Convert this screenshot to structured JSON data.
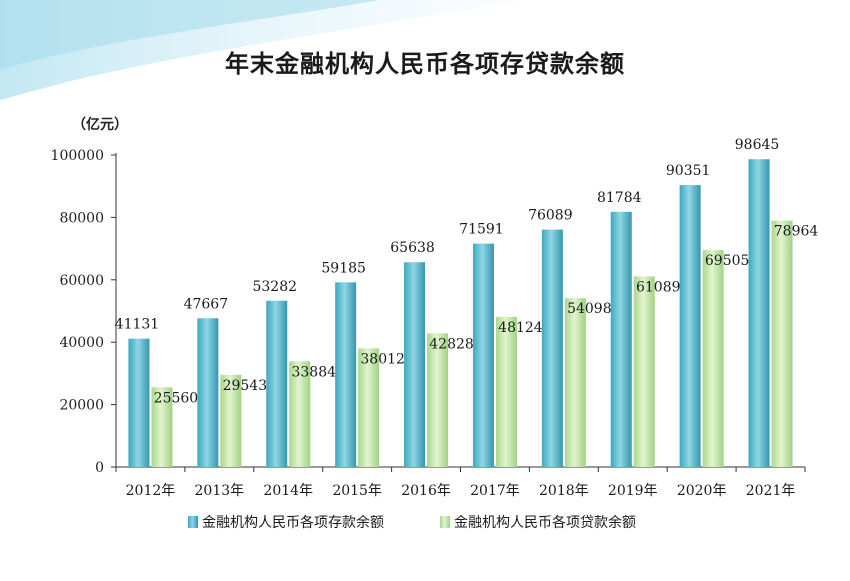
{
  "chart_data": {
    "type": "bar",
    "title": "年末金融机构人民币各项存贷款余额",
    "unit_label": "（亿元）",
    "categories": [
      "2012年",
      "2013年",
      "2014年",
      "2015年",
      "2016年",
      "2017年",
      "2018年",
      "2019年",
      "2020年",
      "2021年"
    ],
    "series": [
      {
        "name": "金融机构人民币各项存款余额",
        "values": [
          41131,
          47667,
          53282,
          59185,
          65638,
          71591,
          76089,
          81784,
          90351,
          98645
        ],
        "color": "#5bbcd0"
      },
      {
        "name": "金融机构人民币各项贷款余额",
        "values": [
          25560,
          29543,
          33884,
          38012,
          42828,
          48124,
          54098,
          61089,
          69505,
          78964
        ],
        "color": "#c6e8a8"
      }
    ],
    "ylim": [
      0,
      100000
    ],
    "yticks": [
      0,
      20000,
      40000,
      60000,
      80000,
      100000
    ],
    "grid": false,
    "legend_position": "bottom"
  }
}
